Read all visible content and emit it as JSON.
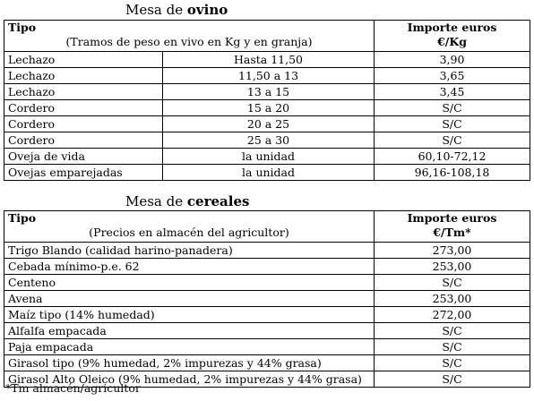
{
  "ovino": {
    "title_prefix": "Mesa de ",
    "title_bold": "ovino",
    "header": {
      "col1_title": "Tipo",
      "col1_sub": "(Tramos de peso en vivo en Kg y en granja)",
      "col3_title": "Importe euros",
      "col3_unit": "€/Kg"
    },
    "rows": [
      {
        "type": "Lechazo",
        "range": "Hasta 11,50",
        "price": "3,90"
      },
      {
        "type": "Lechazo",
        "range": "11,50 a 13",
        "price": "3,65"
      },
      {
        "type": "Lechazo",
        "range": "13 a 15",
        "price": "3,45"
      },
      {
        "type": "Cordero",
        "range": "15 a 20",
        "price": "S/C"
      },
      {
        "type": "Cordero",
        "range": "20 a 25",
        "price": "S/C"
      },
      {
        "type": "Cordero",
        "range": "25 a 30",
        "price": "S/C"
      },
      {
        "type": "Oveja de vida",
        "range": "la unidad",
        "price": "60,10-72,12"
      },
      {
        "type": "Ovejas emparejadas",
        "range": "la unidad",
        "price": "96,16-108,18"
      }
    ]
  },
  "cereales": {
    "title_prefix": "Mesa de ",
    "title_bold": "cereales",
    "header": {
      "col1_title": "Tipo",
      "col1_sub": "(Precios en almacén del agricultor)",
      "col2_title": "Importe euros",
      "col2_unit": "€/Tm*"
    },
    "rows": [
      {
        "type": "Trigo Blando (calidad harino-panadera)",
        "price": "273,00"
      },
      {
        "type": "Cebada mínimo-p.e. 62",
        "price": "253,00"
      },
      {
        "type": "Centeno",
        "price": "S/C"
      },
      {
        "type": "Avena",
        "price": "253,00"
      },
      {
        "type": "Maíz tipo (14% humedad)",
        "price": "272,00"
      },
      {
        "type": "Alfalfa empacada",
        "price": "S/C"
      },
      {
        "type": "Paja empacada",
        "price": "S/C"
      },
      {
        "type": "Girasol tipo (9% humedad, 2% impurezas y 44% grasa)",
        "price": "S/C"
      },
      {
        "type": "Girasol Alto Oleico (9% humedad, 2% impurezas y 44% grasa)",
        "price": "S/C"
      }
    ],
    "note": "*Tm almacén/agricultor"
  }
}
